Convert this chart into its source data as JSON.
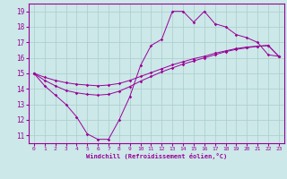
{
  "title": "",
  "xlabel": "Windchill (Refroidissement éolien,°C)",
  "bg_color": "#cce8e8",
  "grid_color": "#aacccc",
  "line_color": "#990099",
  "spine_color": "#990099",
  "x_ticks": [
    0,
    1,
    2,
    3,
    4,
    5,
    6,
    7,
    8,
    9,
    10,
    11,
    12,
    13,
    14,
    15,
    16,
    17,
    18,
    19,
    20,
    21,
    22,
    23
  ],
  "y_ticks": [
    11,
    12,
    13,
    14,
    15,
    16,
    17,
    18,
    19
  ],
  "ylim": [
    10.5,
    19.5
  ],
  "xlim": [
    -0.5,
    23.5
  ],
  "curve1_y": [
    15.0,
    14.2,
    13.6,
    13.0,
    12.2,
    11.1,
    10.75,
    10.75,
    12.0,
    13.5,
    15.5,
    16.8,
    17.2,
    19.0,
    19.0,
    18.3,
    19.0,
    18.2,
    18.0,
    17.5,
    17.3,
    17.0,
    16.2,
    16.1
  ],
  "curve2_y": [
    15.0,
    14.55,
    14.2,
    13.9,
    13.75,
    13.65,
    13.6,
    13.65,
    13.85,
    14.15,
    14.5,
    14.8,
    15.1,
    15.35,
    15.6,
    15.8,
    16.0,
    16.2,
    16.4,
    16.55,
    16.65,
    16.75,
    16.8,
    16.1
  ],
  "curve3_y": [
    15.0,
    14.75,
    14.55,
    14.4,
    14.3,
    14.25,
    14.2,
    14.25,
    14.35,
    14.55,
    14.8,
    15.05,
    15.3,
    15.55,
    15.75,
    15.95,
    16.1,
    16.3,
    16.45,
    16.6,
    16.7,
    16.75,
    16.8,
    16.1
  ]
}
